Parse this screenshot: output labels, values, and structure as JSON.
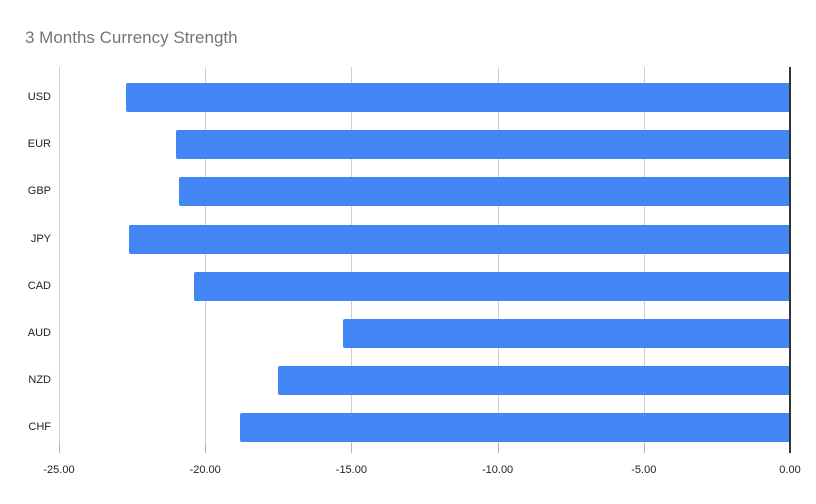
{
  "chart_data": {
    "type": "bar",
    "orientation": "horizontal",
    "title": "3 Months Currency Strength",
    "categories": [
      "USD",
      "EUR",
      "GBP",
      "JPY",
      "CAD",
      "AUD",
      "NZD",
      "CHF"
    ],
    "values": [
      -22.7,
      -21.0,
      -20.9,
      -22.6,
      -20.4,
      -15.3,
      -17.5,
      -18.8
    ],
    "xlabel": "",
    "ylabel": "",
    "xlim": [
      -25,
      0
    ],
    "x_ticks": [
      -25,
      -20,
      -15,
      -10,
      -5,
      0
    ],
    "x_tick_labels": [
      "-25.00",
      "-20.00",
      "-15.00",
      "-10.00",
      "-5.00",
      "0.00"
    ],
    "grid": true,
    "legend_position": "none",
    "colors": {
      "bar": "#4285F4",
      "title": "#757575",
      "gridline": "#cfcfcf",
      "zero_axis": "#333333",
      "axis_label": "#222222",
      "background": "#ffffff"
    }
  }
}
